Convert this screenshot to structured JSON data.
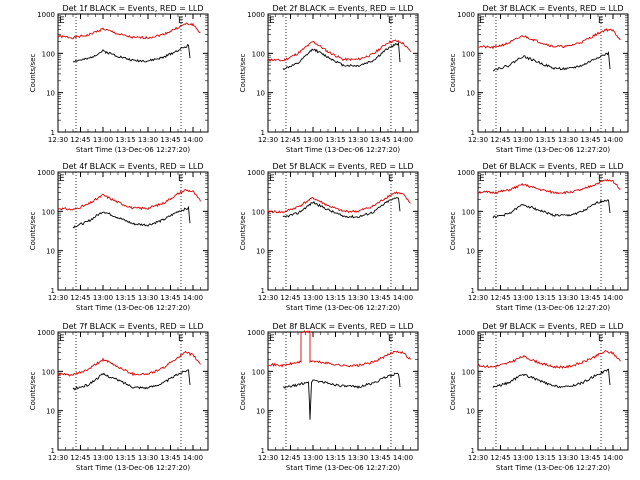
{
  "figure": {
    "background": "#ffffff",
    "foreground": "#000000",
    "events_color": "#000000",
    "lld_color": "#dd0000"
  },
  "chart_data": [
    {
      "type": "line",
      "title": "Det 1f BLACK = Events, RED = LLD",
      "xlabel": "Start Time (13-Dec-06 12:27:20)",
      "ylabel": "Counts/sec",
      "yscale": "log",
      "ylim": [
        1,
        1000
      ],
      "ytick_labels": [
        "1",
        "10",
        "100",
        "1000"
      ],
      "xlim": [
        "12:30",
        "14:10"
      ],
      "xtick_labels": [
        "12:30",
        "12:45",
        "13:00",
        "13:15",
        "13:30",
        "13:45",
        "14:00"
      ],
      "markers": [
        {
          "time": "12:42",
          "label": ""
        },
        {
          "time": "13:52",
          "label": "E"
        }
      ],
      "corner_label": "E",
      "series": [
        {
          "name": "",
          "color": "#dd0000",
          "x": [
            "12:30",
            "12:40",
            "12:50",
            "13:00",
            "13:10",
            "13:20",
            "13:30",
            "13:40",
            "13:50",
            "13:55",
            "14:00",
            "14:05"
          ],
          "y": [
            270,
            250,
            290,
            420,
            310,
            250,
            250,
            300,
            450,
            560,
            540,
            330
          ]
        },
        {
          "name": "",
          "color": "#000000",
          "x": [
            "12:40",
            "12:50",
            "13:00",
            "13:10",
            "13:20",
            "13:30",
            "13:40",
            "13:50",
            "13:57",
            "13:58"
          ],
          "y": [
            63,
            72,
            115,
            85,
            66,
            64,
            78,
            120,
            160,
            75
          ]
        }
      ]
    },
    {
      "type": "line",
      "title": "Det 2f BLACK = Events, RED = LLD",
      "xlabel": "Start Time (13-Dec-06 12:27:20)",
      "ylabel": "Counts/sec",
      "yscale": "log",
      "ylim": [
        1,
        1000
      ],
      "ytick_labels": [
        "1",
        "10",
        "100",
        "1000"
      ],
      "xlim": [
        "12:30",
        "14:10"
      ],
      "xtick_labels": [
        "12:30",
        "12:45",
        "13:00",
        "13:15",
        "13:30",
        "13:45",
        "14:00"
      ],
      "markers": [
        {
          "time": "12:42",
          "label": ""
        },
        {
          "time": "13:52",
          "label": "E"
        }
      ],
      "corner_label": "E",
      "series": [
        {
          "name": "",
          "color": "#dd0000",
          "x": [
            "12:30",
            "12:40",
            "12:50",
            "13:00",
            "13:10",
            "13:20",
            "13:30",
            "13:40",
            "13:50",
            "13:55",
            "14:00",
            "14:05"
          ],
          "y": [
            70,
            65,
            100,
            200,
            110,
            70,
            70,
            95,
            190,
            210,
            180,
            110
          ]
        },
        {
          "name": "",
          "color": "#000000",
          "x": [
            "12:40",
            "12:50",
            "13:00",
            "13:10",
            "13:20",
            "13:30",
            "13:40",
            "13:50",
            "13:57",
            "13:58"
          ],
          "y": [
            40,
            55,
            130,
            80,
            50,
            48,
            65,
            135,
            180,
            60
          ]
        }
      ]
    },
    {
      "type": "line",
      "title": "Det 3f BLACK = Events, RED = LLD",
      "xlabel": "Start Time (13-Dec-06 12:27:20)",
      "ylabel": "Counts/sec",
      "yscale": "log",
      "ylim": [
        1,
        1000
      ],
      "ytick_labels": [
        "1",
        "10",
        "100",
        "1000"
      ],
      "xlim": [
        "12:30",
        "14:10"
      ],
      "xtick_labels": [
        "12:30",
        "12:45",
        "13:00",
        "13:15",
        "13:30",
        "13:45",
        "14:00"
      ],
      "markers": [
        {
          "time": "12:42",
          "label": ""
        },
        {
          "time": "13:52",
          "label": "E"
        }
      ],
      "corner_label": "E",
      "series": [
        {
          "name": "",
          "color": "#dd0000",
          "x": [
            "12:30",
            "12:40",
            "12:50",
            "13:00",
            "13:10",
            "13:20",
            "13:30",
            "13:40",
            "13:50",
            "13:55",
            "14:00",
            "14:05"
          ],
          "y": [
            150,
            140,
            180,
            280,
            200,
            150,
            150,
            200,
            320,
            400,
            380,
            220
          ]
        },
        {
          "name": "",
          "color": "#000000",
          "x": [
            "12:40",
            "12:50",
            "13:00",
            "13:10",
            "13:20",
            "13:30",
            "13:40",
            "13:50",
            "13:57",
            "13:58"
          ],
          "y": [
            38,
            48,
            85,
            60,
            42,
            40,
            50,
            80,
            100,
            40
          ]
        }
      ]
    },
    {
      "type": "line",
      "title": "Det 4f BLACK = Events, RED = LLD",
      "xlabel": "Start Time (13-Dec-06 12:27:20)",
      "ylabel": "Counts/sec",
      "yscale": "log",
      "ylim": [
        1,
        1000
      ],
      "ytick_labels": [
        "1",
        "10",
        "100",
        "1000"
      ],
      "xlim": [
        "12:30",
        "14:10"
      ],
      "xtick_labels": [
        "12:30",
        "12:45",
        "13:00",
        "13:15",
        "13:30",
        "13:45",
        "14:00"
      ],
      "markers": [
        {
          "time": "12:42",
          "label": ""
        },
        {
          "time": "13:52",
          "label": "E"
        }
      ],
      "corner_label": "E",
      "series": [
        {
          "name": "",
          "color": "#dd0000",
          "x": [
            "12:30",
            "12:40",
            "12:50",
            "13:00",
            "13:10",
            "13:20",
            "13:30",
            "13:40",
            "13:50",
            "13:55",
            "14:00",
            "14:05"
          ],
          "y": [
            120,
            110,
            150,
            260,
            170,
            120,
            120,
            160,
            280,
            350,
            320,
            180
          ]
        },
        {
          "name": "",
          "color": "#000000",
          "x": [
            "12:40",
            "12:50",
            "13:00",
            "13:10",
            "13:20",
            "13:30",
            "13:40",
            "13:50",
            "13:57",
            "13:58"
          ],
          "y": [
            40,
            55,
            100,
            70,
            48,
            45,
            60,
            100,
            120,
            50
          ]
        }
      ]
    },
    {
      "type": "line",
      "title": "Det 5f BLACK = Events, RED = LLD",
      "xlabel": "Start Time (13-Dec-06 12:27:20)",
      "ylabel": "Counts/sec",
      "yscale": "log",
      "ylim": [
        1,
        1000
      ],
      "ytick_labels": [
        "1",
        "10",
        "100",
        "1000"
      ],
      "xlim": [
        "12:30",
        "14:10"
      ],
      "xtick_labels": [
        "12:30",
        "12:45",
        "13:00",
        "13:15",
        "13:30",
        "13:45",
        "14:00"
      ],
      "markers": [
        {
          "time": "12:42",
          "label": ""
        },
        {
          "time": "13:52",
          "label": "E"
        }
      ],
      "corner_label": "E",
      "series": [
        {
          "name": "",
          "color": "#dd0000",
          "x": [
            "12:30",
            "12:40",
            "12:50",
            "13:00",
            "13:10",
            "13:20",
            "13:30",
            "13:40",
            "13:50",
            "13:55",
            "14:00",
            "14:05"
          ],
          "y": [
            100,
            95,
            130,
            220,
            140,
            100,
            100,
            135,
            240,
            300,
            270,
            160
          ]
        },
        {
          "name": "",
          "color": "#000000",
          "x": [
            "12:40",
            "12:50",
            "13:00",
            "13:10",
            "13:20",
            "13:30",
            "13:40",
            "13:50",
            "13:57",
            "13:58"
          ],
          "y": [
            70,
            90,
            170,
            110,
            75,
            72,
            95,
            180,
            230,
            100
          ]
        }
      ]
    },
    {
      "type": "line",
      "title": "Det 6f BLACK = Events, RED = LLD",
      "xlabel": "Start Time (13-Dec-06 12:27:20)",
      "ylabel": "Counts/sec",
      "yscale": "log",
      "ylim": [
        1,
        1000
      ],
      "ytick_labels": [
        "1",
        "10",
        "100",
        "1000"
      ],
      "xlim": [
        "12:30",
        "14:10"
      ],
      "xtick_labels": [
        "12:30",
        "12:45",
        "13:00",
        "13:15",
        "13:30",
        "13:45",
        "14:00"
      ],
      "markers": [
        {
          "time": "12:42",
          "label": ""
        },
        {
          "time": "13:52",
          "label": "E"
        }
      ],
      "corner_label": "E",
      "series": [
        {
          "name": "",
          "color": "#dd0000",
          "x": [
            "12:30",
            "12:40",
            "12:50",
            "13:00",
            "13:10",
            "13:20",
            "13:30",
            "13:40",
            "13:50",
            "13:55",
            "14:00",
            "14:05"
          ],
          "y": [
            310,
            300,
            340,
            480,
            370,
            300,
            300,
            360,
            520,
            620,
            580,
            370
          ]
        },
        {
          "name": "",
          "color": "#000000",
          "x": [
            "12:40",
            "12:50",
            "13:00",
            "13:10",
            "13:20",
            "13:30",
            "13:40",
            "13:50",
            "13:57",
            "13:58"
          ],
          "y": [
            70,
            85,
            150,
            110,
            80,
            78,
            100,
            170,
            200,
            90
          ]
        }
      ]
    },
    {
      "type": "line",
      "title": "Det 7f BLACK = Events, RED = LLD",
      "xlabel": "Start Time (13-Dec-06 12:27:20)",
      "ylabel": "Counts/sec",
      "yscale": "log",
      "ylim": [
        1,
        1000
      ],
      "ytick_labels": [
        "1",
        "10",
        "100",
        "1000"
      ],
      "xlim": [
        "12:30",
        "14:10"
      ],
      "xtick_labels": [
        "12:30",
        "12:45",
        "13:00",
        "13:15",
        "13:30",
        "13:45",
        "14:00"
      ],
      "markers": [
        {
          "time": "12:42",
          "label": ""
        },
        {
          "time": "13:52",
          "label": "E"
        }
      ],
      "corner_label": "E",
      "series": [
        {
          "name": "",
          "color": "#dd0000",
          "x": [
            "12:30",
            "12:40",
            "12:50",
            "13:00",
            "13:10",
            "13:20",
            "13:30",
            "13:40",
            "13:50",
            "13:55",
            "14:00",
            "14:05"
          ],
          "y": [
            85,
            80,
            110,
            200,
            130,
            85,
            85,
            120,
            230,
            300,
            260,
            150
          ]
        },
        {
          "name": "",
          "color": "#000000",
          "x": [
            "12:40",
            "12:50",
            "13:00",
            "13:10",
            "13:20",
            "13:30",
            "13:40",
            "13:50",
            "13:57",
            "13:58"
          ],
          "y": [
            35,
            45,
            85,
            60,
            40,
            38,
            50,
            85,
            110,
            45
          ]
        }
      ]
    },
    {
      "type": "line",
      "title": "Det 8f BLACK = Events, RED = LLD",
      "xlabel": "Start Time (13-Dec-06 12:27:20)",
      "ylabel": "Counts/sec",
      "yscale": "log",
      "ylim": [
        1,
        1000
      ],
      "ytick_labels": [
        "1",
        "10",
        "100",
        "1000"
      ],
      "xlim": [
        "12:30",
        "14:10"
      ],
      "xtick_labels": [
        "12:30",
        "12:45",
        "13:00",
        "13:15",
        "13:30",
        "13:45",
        "14:00"
      ],
      "markers": [
        {
          "time": "12:42",
          "label": ""
        },
        {
          "time": "13:52",
          "label": "E"
        }
      ],
      "corner_label": "E",
      "series": [
        {
          "name": "",
          "color": "#dd0000",
          "x": [
            "12:30",
            "12:40",
            "12:50",
            "12:52",
            "12:52",
            "12:53",
            "12:58",
            "12:58",
            "12:59",
            "13:00",
            "13:10",
            "13:20",
            "13:30",
            "13:40",
            "13:50",
            "13:55",
            "14:00",
            "14:05"
          ],
          "y": [
            150,
            140,
            170,
            175,
            1000,
            1000,
            1000,
            180,
            185,
            180,
            160,
            140,
            140,
            170,
            260,
            330,
            300,
            200
          ]
        },
        {
          "name": "",
          "color": "#000000",
          "x": [
            "12:40",
            "12:50",
            "12:57",
            "12:58",
            "12:59",
            "13:00",
            "13:10",
            "13:20",
            "13:30",
            "13:40",
            "13:50",
            "13:57",
            "13:58"
          ],
          "y": [
            38,
            45,
            55,
            6,
            55,
            60,
            50,
            42,
            40,
            50,
            75,
            90,
            40
          ]
        }
      ]
    },
    {
      "type": "line",
      "title": "Det 9f BLACK = Events, RED = LLD",
      "xlabel": "Start Time (13-Dec-06 12:27:20)",
      "ylabel": "Counts/sec",
      "yscale": "log",
      "ylim": [
        1,
        1000
      ],
      "ytick_labels": [
        "1",
        "10",
        "100",
        "1000"
      ],
      "xlim": [
        "12:30",
        "14:10"
      ],
      "xtick_labels": [
        "12:30",
        "12:45",
        "13:00",
        "13:15",
        "13:30",
        "13:45",
        "14:00"
      ],
      "markers": [
        {
          "time": "12:42",
          "label": ""
        },
        {
          "time": "13:52",
          "label": "E"
        }
      ],
      "corner_label": "E",
      "series": [
        {
          "name": "",
          "color": "#dd0000",
          "x": [
            "12:30",
            "12:40",
            "12:50",
            "13:00",
            "13:10",
            "13:20",
            "13:30",
            "13:40",
            "13:50",
            "13:55",
            "14:00",
            "14:05"
          ],
          "y": [
            140,
            130,
            160,
            240,
            170,
            130,
            130,
            170,
            260,
            320,
            290,
            180
          ]
        },
        {
          "name": "",
          "color": "#000000",
          "x": [
            "12:40",
            "12:50",
            "13:00",
            "13:10",
            "13:20",
            "13:30",
            "13:40",
            "13:50",
            "13:57",
            "13:58"
          ],
          "y": [
            40,
            50,
            85,
            60,
            42,
            40,
            52,
            85,
            110,
            45
          ]
        }
      ]
    }
  ]
}
